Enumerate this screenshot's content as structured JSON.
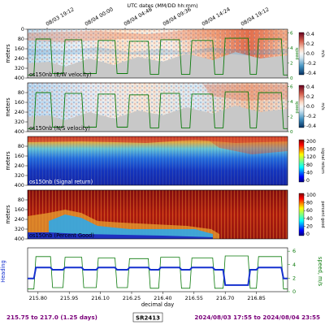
{
  "title": "UTC dates (MM/DD hh:mm)",
  "top_time_labels": [
    "08/03 19:12",
    "08/04 00:00",
    "08/04 04:48",
    "08/04 09:36",
    "08/04 14:24",
    "08/04 19:12"
  ],
  "footer": {
    "range": "215.75 to 217.0 (1.25 days)",
    "ship": "SR2413",
    "dates": "2024/08/03 17:55 to 2024/08/04 23:55"
  },
  "colors": {
    "green_line": "#0a7a0a",
    "heading": "#1530cf",
    "gaps": "#c8c8c8",
    "footer_text": "#7a007a"
  },
  "chart_data": [
    {
      "type": "heatmap",
      "panel_label": "os150nb (E/W velocity)",
      "ylabel": "meters",
      "y_ticks": [
        0,
        80,
        160,
        240,
        320,
        400
      ],
      "colorbar_label": "m/s",
      "colorbar_ticks": [
        "0.4",
        "0.2",
        "0.0",
        "-0.2",
        "-0.4"
      ],
      "colormap": "diverging",
      "right_axis_ticks": [
        "6",
        "4",
        "2",
        "0"
      ],
      "right_axis_label": "speed"
    },
    {
      "type": "heatmap",
      "panel_label": "os150nb (N/S velocity)",
      "ylabel": "meters",
      "y_ticks": [
        80,
        160,
        240,
        320,
        400
      ],
      "colorbar_label": "m/s",
      "colorbar_ticks": [
        "0.4",
        "0.2",
        "0.0",
        "-0.2",
        "-0.4"
      ],
      "colormap": "diverging",
      "right_axis_ticks": [
        "6",
        "4",
        "2",
        "0"
      ],
      "right_axis_label": "speed"
    },
    {
      "type": "heatmap",
      "panel_label": "os150nb (Signal return)",
      "ylabel": "meters",
      "y_ticks": [
        80,
        160,
        240,
        320,
        400
      ],
      "colorbar_label": "signal return",
      "colorbar_ticks": [
        "200",
        "160",
        "120",
        "80",
        "40",
        "0"
      ],
      "colormap": "jet"
    },
    {
      "type": "heatmap",
      "panel_label": "os150nb (Percent Good)",
      "ylabel": "meters",
      "y_ticks": [
        80,
        160,
        240,
        320,
        400
      ],
      "colorbar_label": "percent good",
      "colorbar_ticks": [
        "100",
        "80",
        "60",
        "40",
        "20",
        "0"
      ],
      "colormap": "jet"
    },
    {
      "type": "line",
      "ylabel": "Heading",
      "right_axis_label": "speed, m/s",
      "right_axis_ticks": [
        "6",
        "4",
        "2",
        "0"
      ],
      "xlabel": "decimal day",
      "x_ticks": [
        215.8,
        215.95,
        216.1,
        216.25,
        216.4,
        216.55,
        216.7,
        216.85
      ],
      "x_tick_labels": [
        "215.80",
        "215.95",
        "216.10",
        "216.25",
        "216.40",
        "216.55",
        "216.70",
        "216.85"
      ],
      "xlim": [
        215.75,
        217.0
      ],
      "series": [
        {
          "color": "#0a7a0a",
          "points": [
            [
              215.75,
              0.4
            ],
            [
              215.78,
              0.4
            ],
            [
              215.79,
              5.2
            ],
            [
              215.86,
              5.2
            ],
            [
              215.87,
              0.6
            ],
            [
              215.92,
              0.6
            ],
            [
              215.93,
              5.1
            ],
            [
              216.01,
              5.1
            ],
            [
              216.02,
              0.6
            ],
            [
              216.08,
              0.6
            ],
            [
              216.09,
              5.0
            ],
            [
              216.17,
              5.0
            ],
            [
              216.18,
              0.6
            ],
            [
              216.23,
              0.6
            ],
            [
              216.24,
              4.9
            ],
            [
              216.33,
              4.9
            ],
            [
              216.34,
              0.5
            ],
            [
              216.38,
              0.5
            ],
            [
              216.39,
              5.1
            ],
            [
              216.48,
              5.1
            ],
            [
              216.49,
              0.5
            ],
            [
              216.53,
              0.5
            ],
            [
              216.54,
              5.0
            ],
            [
              216.64,
              5.0
            ],
            [
              216.65,
              0.5
            ],
            [
              216.69,
              0.5
            ],
            [
              216.7,
              5.3
            ],
            [
              216.81,
              5.3
            ],
            [
              216.82,
              0.5
            ],
            [
              216.85,
              0.5
            ],
            [
              216.86,
              5.2
            ],
            [
              216.97,
              5.2
            ],
            [
              216.98,
              0.4
            ],
            [
              217.0,
              0.4
            ]
          ]
        },
        {
          "color": "#1530cf",
          "points": [
            [
              215.75,
              0.3
            ],
            [
              215.78,
              0.3
            ],
            [
              215.79,
              0.55
            ],
            [
              215.86,
              0.55
            ],
            [
              215.87,
              0.5
            ],
            [
              215.92,
              0.5
            ],
            [
              215.93,
              0.55
            ],
            [
              216.01,
              0.55
            ],
            [
              216.02,
              0.5
            ],
            [
              216.08,
              0.5
            ],
            [
              216.09,
              0.55
            ],
            [
              216.17,
              0.55
            ],
            [
              216.18,
              0.5
            ],
            [
              216.23,
              0.5
            ],
            [
              216.24,
              0.55
            ],
            [
              216.33,
              0.55
            ],
            [
              216.34,
              0.5
            ],
            [
              216.38,
              0.5
            ],
            [
              216.39,
              0.55
            ],
            [
              216.48,
              0.55
            ],
            [
              216.49,
              0.5
            ],
            [
              216.53,
              0.5
            ],
            [
              216.54,
              0.55
            ],
            [
              216.64,
              0.55
            ],
            [
              216.65,
              0.5
            ],
            [
              216.69,
              0.5
            ],
            [
              216.7,
              0.15
            ],
            [
              216.81,
              0.15
            ],
            [
              216.82,
              0.5
            ],
            [
              216.85,
              0.5
            ],
            [
              216.86,
              0.55
            ],
            [
              216.97,
              0.55
            ],
            [
              216.98,
              0.3
            ],
            [
              217.0,
              0.3
            ]
          ]
        }
      ]
    }
  ]
}
